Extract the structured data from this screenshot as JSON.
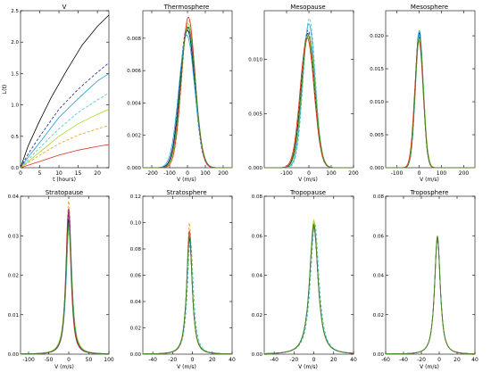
{
  "chart_data": [
    {
      "type": "line",
      "title": "V",
      "xlabel": "t (hours)",
      "ylabel": "L(t)",
      "xlim": [
        0,
        23
      ],
      "ylim": [
        0,
        2.5
      ],
      "xticks": [
        0,
        5,
        10,
        15,
        20
      ],
      "yticks": [
        0,
        0.5,
        1.0,
        1.5,
        2.0,
        2.5
      ],
      "ytick_labels": [
        "0.0",
        "0.5",
        "1.0",
        "1.5",
        "2.0",
        "2.5"
      ],
      "series": [
        {
          "color": "#000000",
          "dash": false,
          "x": [
            0,
            2,
            5,
            8,
            12,
            16,
            20,
            23
          ],
          "y": [
            0,
            0.35,
            0.75,
            1.12,
            1.55,
            1.95,
            2.25,
            2.43
          ]
        },
        {
          "color": "#1a1aa0",
          "dash": true,
          "x": [
            0,
            2,
            5,
            10,
            15,
            20,
            23
          ],
          "y": [
            0,
            0.22,
            0.5,
            0.93,
            1.25,
            1.52,
            1.67
          ]
        },
        {
          "color": "#20a0d0",
          "dash": false,
          "x": [
            0,
            2,
            5,
            10,
            15,
            20,
            23
          ],
          "y": [
            0,
            0.17,
            0.4,
            0.8,
            1.1,
            1.38,
            1.5
          ]
        },
        {
          "color": "#40c8c8",
          "dash": true,
          "x": [
            0,
            5,
            10,
            15,
            20,
            23
          ],
          "y": [
            0,
            0.32,
            0.62,
            0.88,
            1.08,
            1.19
          ]
        },
        {
          "color": "#a8d820",
          "dash": false,
          "x": [
            0,
            5,
            10,
            15,
            20,
            23
          ],
          "y": [
            0,
            0.25,
            0.5,
            0.7,
            0.85,
            0.93
          ]
        },
        {
          "color": "#e8a020",
          "dash": true,
          "x": [
            0,
            5,
            10,
            15,
            20,
            23
          ],
          "y": [
            0,
            0.2,
            0.38,
            0.52,
            0.62,
            0.67
          ]
        },
        {
          "color": "#d83020",
          "dash": false,
          "x": [
            0,
            5,
            10,
            15,
            20,
            23
          ],
          "y": [
            0,
            0.1,
            0.2,
            0.28,
            0.34,
            0.37
          ]
        }
      ]
    },
    {
      "type": "line",
      "title": "Thermosphere",
      "xlabel": "V (m/s)",
      "xlim": [
        -250,
        250
      ],
      "ylim": [
        0,
        0.0097
      ],
      "xticks": [
        -200,
        -100,
        0,
        100,
        200
      ],
      "yticks": [
        0,
        0.002,
        0.004,
        0.006,
        0.008
      ],
      "ytick_labels": [
        "0.000",
        "0.002",
        "0.004",
        "0.006",
        "0.008"
      ],
      "series": [
        {
          "color": "#000000",
          "dash": false,
          "peak": 0.0085,
          "center": 0,
          "width": 42,
          "shape": "gauss"
        },
        {
          "color": "#1a1aa0",
          "dash": true,
          "peak": 0.0087,
          "center": -2,
          "width": 41,
          "shape": "gauss"
        },
        {
          "color": "#20a0d0",
          "dash": false,
          "peak": 0.0082,
          "center": -4,
          "width": 44,
          "shape": "gauss"
        },
        {
          "color": "#40c8c8",
          "dash": true,
          "peak": 0.0088,
          "center": 2,
          "width": 40,
          "shape": "gauss"
        },
        {
          "color": "#a8d820",
          "dash": false,
          "peak": 0.0089,
          "center": 4,
          "width": 40,
          "shape": "gauss"
        },
        {
          "color": "#e8a020",
          "dash": true,
          "peak": 0.0091,
          "center": 6,
          "width": 38,
          "shape": "gauss"
        },
        {
          "color": "#d83020",
          "dash": false,
          "peak": 0.0093,
          "center": 5,
          "width": 38,
          "shape": "gauss"
        },
        {
          "color": "#2e8b2e",
          "dash": false,
          "peak": 0.0087,
          "center": 3,
          "width": 41,
          "shape": "gauss"
        }
      ]
    },
    {
      "type": "line",
      "title": "Mesopause",
      "xlabel": "V (m/s)",
      "xlim": [
        -200,
        200
      ],
      "ylim": [
        0,
        0.0145
      ],
      "xticks": [
        -100,
        0,
        100,
        200
      ],
      "yticks": [
        0,
        0.005,
        0.01
      ],
      "ytick_labels": [
        "0.000",
        "0.005",
        "0.010"
      ],
      "series": [
        {
          "color": "#000000",
          "dash": false,
          "peak": 0.0124,
          "center": -5,
          "width": 30,
          "shape": "gauss"
        },
        {
          "color": "#1a1aa0",
          "dash": true,
          "peak": 0.0127,
          "center": -4,
          "width": 29,
          "shape": "gauss"
        },
        {
          "color": "#20a0d0",
          "dash": false,
          "peak": 0.0133,
          "center": 0,
          "width": 28,
          "shape": "gauss"
        },
        {
          "color": "#40c8c8",
          "dash": true,
          "peak": 0.0138,
          "center": 2,
          "width": 27,
          "shape": "gauss"
        },
        {
          "color": "#a8d820",
          "dash": false,
          "peak": 0.0123,
          "center": -2,
          "width": 30,
          "shape": "gauss"
        },
        {
          "color": "#e8a020",
          "dash": true,
          "peak": 0.0121,
          "center": -6,
          "width": 31,
          "shape": "gauss"
        },
        {
          "color": "#d83020",
          "dash": false,
          "peak": 0.012,
          "center": -8,
          "width": 31,
          "shape": "gauss"
        },
        {
          "color": "#2e8b2e",
          "dash": false,
          "peak": 0.0122,
          "center": -3,
          "width": 30,
          "shape": "gauss"
        }
      ]
    },
    {
      "type": "line",
      "title": "Mesosphere",
      "xlabel": "V (m/s)",
      "xlim": [
        -150,
        250
      ],
      "ylim": [
        0,
        0.0238
      ],
      "xticks": [
        -100,
        0,
        100,
        200
      ],
      "yticks": [
        0,
        0.005,
        0.01,
        0.015,
        0.02
      ],
      "ytick_labels": [
        "0.000",
        "0.005",
        "0.010",
        "0.015",
        "0.020"
      ],
      "series": [
        {
          "color": "#000000",
          "dash": false,
          "peak": 0.0205,
          "center": 0,
          "width": 18,
          "shape": "gauss"
        },
        {
          "color": "#1a1aa0",
          "dash": true,
          "peak": 0.0203,
          "center": 0,
          "width": 18,
          "shape": "gauss"
        },
        {
          "color": "#20a0d0",
          "dash": false,
          "peak": 0.0208,
          "center": 1,
          "width": 18,
          "shape": "gauss"
        },
        {
          "color": "#40c8c8",
          "dash": true,
          "peak": 0.02,
          "center": 2,
          "width": 18,
          "shape": "gauss"
        },
        {
          "color": "#a8d820",
          "dash": false,
          "peak": 0.0196,
          "center": 1,
          "width": 19,
          "shape": "gauss"
        },
        {
          "color": "#e8a020",
          "dash": true,
          "peak": 0.0194,
          "center": 0,
          "width": 19,
          "shape": "gauss"
        },
        {
          "color": "#d83020",
          "dash": false,
          "peak": 0.0192,
          "center": -1,
          "width": 19,
          "shape": "gauss"
        },
        {
          "color": "#2e8b2e",
          "dash": false,
          "peak": 0.0198,
          "center": 1,
          "width": 18,
          "shape": "gauss"
        }
      ]
    },
    {
      "type": "line",
      "title": "Stratopause",
      "xlabel": "V (m/s)",
      "xlim": [
        -120,
        100
      ],
      "ylim": [
        0,
        0.04
      ],
      "xticks": [
        -100,
        -50,
        0,
        50,
        100
      ],
      "yticks": [
        0,
        0.01,
        0.02,
        0.03,
        0.04
      ],
      "ytick_labels": [
        "0.00",
        "0.01",
        "0.02",
        "0.03",
        "0.04"
      ],
      "series": [
        {
          "color": "#000000",
          "dash": false,
          "peak": 0.034,
          "center": 0,
          "width": 10,
          "shape": "lorentz"
        },
        {
          "color": "#1a1aa0",
          "dash": true,
          "peak": 0.035,
          "center": 0,
          "width": 10,
          "shape": "lorentz"
        },
        {
          "color": "#20a0d0",
          "dash": false,
          "peak": 0.033,
          "center": 1,
          "width": 10,
          "shape": "lorentz"
        },
        {
          "color": "#40c8c8",
          "dash": true,
          "peak": 0.032,
          "center": 1,
          "width": 10,
          "shape": "lorentz"
        },
        {
          "color": "#a8d820",
          "dash": false,
          "peak": 0.031,
          "center": 0,
          "width": 11,
          "shape": "lorentz"
        },
        {
          "color": "#e8a020",
          "dash": true,
          "peak": 0.039,
          "center": 0,
          "width": 9,
          "shape": "lorentz"
        },
        {
          "color": "#d83020",
          "dash": false,
          "peak": 0.036,
          "center": -1,
          "width": 9,
          "shape": "lorentz"
        },
        {
          "color": "#8a2090",
          "dash": false,
          "peak": 0.037,
          "center": 0,
          "width": 9,
          "shape": "lorentz"
        },
        {
          "color": "#2e8b2e",
          "dash": false,
          "peak": 0.033,
          "center": 0,
          "width": 10,
          "shape": "lorentz"
        }
      ]
    },
    {
      "type": "line",
      "title": "Stratosphere",
      "xlabel": "V (m/s)",
      "xlim": [
        -50,
        40
      ],
      "ylim": [
        0,
        0.12
      ],
      "xticks": [
        -40,
        -20,
        0,
        20,
        40
      ],
      "yticks": [
        0,
        0.02,
        0.04,
        0.06,
        0.08,
        0.1,
        0.12
      ],
      "ytick_labels": [
        "0.00",
        "0.02",
        "0.04",
        "0.06",
        "0.08",
        "0.10",
        "0.12"
      ],
      "series": [
        {
          "color": "#000000",
          "dash": false,
          "peak": 0.088,
          "center": -3,
          "width": 4,
          "shape": "lorentz"
        },
        {
          "color": "#1a1aa0",
          "dash": true,
          "peak": 0.09,
          "center": -3,
          "width": 4,
          "shape": "lorentz"
        },
        {
          "color": "#20a0d0",
          "dash": false,
          "peak": 0.086,
          "center": -3,
          "width": 4.2,
          "shape": "lorentz"
        },
        {
          "color": "#40c8c8",
          "dash": true,
          "peak": 0.087,
          "center": -2,
          "width": 4.2,
          "shape": "lorentz"
        },
        {
          "color": "#a8d820",
          "dash": false,
          "peak": 0.092,
          "center": -3,
          "width": 4,
          "shape": "lorentz"
        },
        {
          "color": "#e8a020",
          "dash": true,
          "peak": 0.1,
          "center": -3,
          "width": 3.6,
          "shape": "lorentz"
        },
        {
          "color": "#d83020",
          "dash": false,
          "peak": 0.094,
          "center": -3,
          "width": 3.8,
          "shape": "lorentz"
        },
        {
          "color": "#2e8b2e",
          "dash": false,
          "peak": 0.089,
          "center": -3,
          "width": 4,
          "shape": "lorentz"
        }
      ]
    },
    {
      "type": "line",
      "title": "Tropopause",
      "xlabel": "V (m/s)",
      "xlim": [
        -50,
        40
      ],
      "ylim": [
        0,
        0.08
      ],
      "xticks": [
        -40,
        -20,
        0,
        20,
        40
      ],
      "yticks": [
        0,
        0.02,
        0.04,
        0.06,
        0.08
      ],
      "ytick_labels": [
        "0.00",
        "0.02",
        "0.04",
        "0.06",
        "0.08"
      ],
      "series": [
        {
          "color": "#000000",
          "dash": false,
          "peak": 0.065,
          "center": 0,
          "width": 6,
          "shape": "lorentz"
        },
        {
          "color": "#1a1aa0",
          "dash": true,
          "peak": 0.066,
          "center": 0,
          "width": 6,
          "shape": "lorentz"
        },
        {
          "color": "#20a0d0",
          "dash": false,
          "peak": 0.064,
          "center": 0,
          "width": 6.2,
          "shape": "lorentz"
        },
        {
          "color": "#40c8c8",
          "dash": true,
          "peak": 0.066,
          "center": 1,
          "width": 6,
          "shape": "lorentz"
        },
        {
          "color": "#a8d820",
          "dash": false,
          "peak": 0.068,
          "center": 0,
          "width": 5.8,
          "shape": "lorentz"
        },
        {
          "color": "#e8a020",
          "dash": true,
          "peak": 0.067,
          "center": 0,
          "width": 5.9,
          "shape": "lorentz"
        },
        {
          "color": "#d83020",
          "dash": false,
          "peak": 0.065,
          "center": 0,
          "width": 6,
          "shape": "lorentz"
        },
        {
          "color": "#2e8b2e",
          "dash": false,
          "peak": 0.066,
          "center": 0,
          "width": 6,
          "shape": "lorentz"
        }
      ]
    },
    {
      "type": "line",
      "title": "Troposphere",
      "xlabel": "V (m/s)",
      "xlim": [
        -60,
        40
      ],
      "ylim": [
        0,
        0.08
      ],
      "xticks": [
        -60,
        -40,
        -20,
        0,
        20,
        40
      ],
      "yticks": [
        0,
        0.02,
        0.04,
        0.06,
        0.08
      ],
      "ytick_labels": [
        "0.00",
        "0.02",
        "0.04",
        "0.06",
        "0.08"
      ],
      "series": [
        {
          "color": "#000000",
          "dash": false,
          "peak": 0.059,
          "center": -2,
          "width": 4.5,
          "shape": "lorentz"
        },
        {
          "color": "#1a1aa0",
          "dash": true,
          "peak": 0.059,
          "center": -2,
          "width": 4.5,
          "shape": "lorentz"
        },
        {
          "color": "#20a0d0",
          "dash": false,
          "peak": 0.058,
          "center": -2,
          "width": 4.6,
          "shape": "lorentz"
        },
        {
          "color": "#40c8c8",
          "dash": true,
          "peak": 0.06,
          "center": -2,
          "width": 4.5,
          "shape": "lorentz"
        },
        {
          "color": "#a8d820",
          "dash": false,
          "peak": 0.06,
          "center": -2,
          "width": 4.4,
          "shape": "lorentz"
        },
        {
          "color": "#e8a020",
          "dash": true,
          "peak": 0.059,
          "center": -2,
          "width": 4.5,
          "shape": "lorentz"
        },
        {
          "color": "#d83020",
          "dash": false,
          "peak": 0.059,
          "center": -2,
          "width": 4.5,
          "shape": "lorentz"
        },
        {
          "color": "#2e8b2e",
          "dash": false,
          "peak": 0.06,
          "center": -2,
          "width": 4.5,
          "shape": "lorentz"
        }
      ]
    }
  ]
}
